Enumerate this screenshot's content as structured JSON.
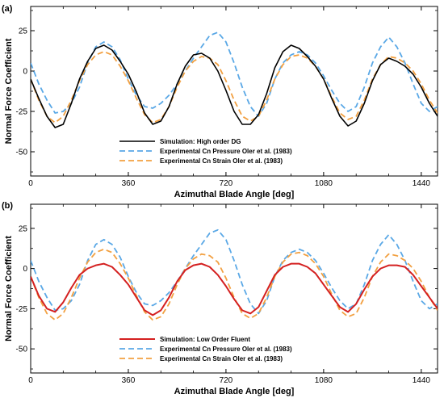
{
  "panels": [
    {
      "label": "(a)",
      "xlabel": "Azimuthal Blade Angle [deg]",
      "ylabel": "Normal Force Coefficient",
      "xlim": [
        0,
        1500
      ],
      "ylim": [
        -65,
        40
      ],
      "xticks": [
        0,
        360,
        720,
        1080,
        1440
      ],
      "yticks": [
        25,
        0,
        -25,
        -50
      ],
      "legend_position": "bottom-center",
      "legend": [
        "Simulation: High order DG",
        "Experimental Cn Pressure Oler et al. (1983)",
        "Experimental Cn Strain Oler et al. (1983)"
      ]
    },
    {
      "label": "(b)",
      "xlabel": "Azimuthal Blade Angle [deg]",
      "ylabel": "Normal Force Coefficient",
      "xlim": [
        0,
        1500
      ],
      "ylim": [
        -65,
        40
      ],
      "xticks": [
        0,
        360,
        720,
        1080,
        1440
      ],
      "yticks": [
        25,
        0,
        -25,
        -50
      ],
      "legend_position": "bottom-center",
      "legend": [
        "Simulation: Low Order Fluent",
        "Experimental Cn Pressure Oler et al. (1983)",
        "Experimental Cn Strain Oler et al. (1983)"
      ]
    }
  ],
  "colors": {
    "dg": "#000000",
    "fluent": "#d42020",
    "pressure": "#5aa8e6",
    "strain": "#f2a041"
  },
  "chart_data": [
    {
      "type": "line",
      "xlim": [
        0,
        1500
      ],
      "ylim": [
        -65,
        40
      ],
      "series": [
        {
          "name": "Simulation: High order DG",
          "x": [
            0,
            30,
            60,
            90,
            120,
            150,
            180,
            210,
            240,
            270,
            300,
            330,
            360,
            390,
            420,
            450,
            480,
            510,
            540,
            570,
            600,
            630,
            660,
            690,
            720,
            750,
            780,
            810,
            840,
            870,
            900,
            930,
            960,
            990,
            1020,
            1050,
            1080,
            1110,
            1140,
            1170,
            1200,
            1230,
            1260,
            1290,
            1320,
            1350,
            1380,
            1410,
            1440,
            1470,
            1500
          ],
          "y": [
            -5,
            -17,
            -28,
            -35,
            -33,
            -20,
            -5,
            6,
            14,
            16,
            13,
            6,
            -2,
            -13,
            -26,
            -33,
            -31,
            -22,
            -8,
            3,
            10,
            11,
            8,
            0,
            -12,
            -25,
            -33,
            -33,
            -27,
            -14,
            2,
            12,
            16,
            14,
            9,
            3,
            -5,
            -17,
            -28,
            -34,
            -31,
            -20,
            -6,
            4,
            8,
            6,
            3,
            -2,
            -10,
            -20,
            -28
          ]
        },
        {
          "name": "Experimental Cn Pressure Oler et al. (1983)",
          "x": [
            0,
            30,
            60,
            90,
            120,
            150,
            180,
            210,
            240,
            270,
            300,
            330,
            360,
            390,
            420,
            450,
            480,
            510,
            540,
            570,
            600,
            630,
            660,
            690,
            720,
            750,
            780,
            810,
            840,
            870,
            900,
            930,
            960,
            990,
            1020,
            1050,
            1080,
            1110,
            1140,
            1170,
            1200,
            1230,
            1260,
            1290,
            1320,
            1350,
            1380,
            1410,
            1440,
            1470,
            1500
          ],
          "y": [
            5,
            -8,
            -18,
            -26,
            -25,
            -20,
            -10,
            5,
            15,
            18,
            15,
            7,
            -5,
            -15,
            -22,
            -23,
            -20,
            -15,
            -8,
            0,
            8,
            15,
            22,
            24,
            18,
            5,
            -10,
            -22,
            -28,
            -20,
            -5,
            5,
            10,
            12,
            10,
            5,
            -3,
            -12,
            -20,
            -25,
            -22,
            -10,
            5,
            15,
            21,
            15,
            5,
            -8,
            -20,
            -25,
            -22
          ]
        },
        {
          "name": "Experimental Cn Strain Oler et al. (1983)",
          "x": [
            0,
            30,
            60,
            90,
            120,
            150,
            180,
            210,
            240,
            270,
            300,
            330,
            360,
            390,
            420,
            450,
            480,
            510,
            540,
            570,
            600,
            630,
            660,
            690,
            720,
            750,
            780,
            810,
            840,
            870,
            900,
            930,
            960,
            990,
            1020,
            1050,
            1080,
            1110,
            1140,
            1170,
            1200,
            1230,
            1260,
            1290,
            1320,
            1350,
            1380,
            1410,
            1440,
            1470,
            1500
          ],
          "y": [
            -5,
            -18,
            -28,
            -32,
            -28,
            -18,
            -6,
            4,
            10,
            12,
            10,
            3,
            -6,
            -17,
            -27,
            -32,
            -30,
            -22,
            -10,
            0,
            6,
            9,
            8,
            4,
            -6,
            -18,
            -28,
            -31,
            -28,
            -18,
            -5,
            4,
            9,
            10,
            8,
            3,
            -5,
            -16,
            -26,
            -30,
            -28,
            -18,
            -5,
            4,
            9,
            8,
            5,
            0,
            -8,
            -18,
            -26
          ]
        }
      ]
    },
    {
      "type": "line",
      "xlim": [
        0,
        1500
      ],
      "ylim": [
        -65,
        40
      ],
      "series": [
        {
          "name": "Simulation: Low Order Fluent",
          "x": [
            0,
            30,
            60,
            90,
            120,
            150,
            180,
            210,
            240,
            270,
            300,
            330,
            360,
            390,
            420,
            450,
            480,
            510,
            540,
            570,
            600,
            630,
            660,
            690,
            720,
            750,
            780,
            810,
            840,
            870,
            900,
            930,
            960,
            990,
            1020,
            1050,
            1080,
            1110,
            1140,
            1170,
            1200,
            1230,
            1260,
            1290,
            1320,
            1350,
            1380,
            1410,
            1440,
            1470,
            1500
          ],
          "y": [
            -5,
            -17,
            -25,
            -27,
            -21,
            -12,
            -4,
            0,
            2,
            3,
            1,
            -4,
            -10,
            -18,
            -26,
            -29,
            -26,
            -18,
            -8,
            -1,
            2,
            3,
            1,
            -4,
            -11,
            -19,
            -26,
            -28,
            -24,
            -14,
            -4,
            1,
            3,
            3,
            1,
            -3,
            -10,
            -17,
            -24,
            -27,
            -22,
            -13,
            -5,
            0,
            2,
            2,
            1,
            -4,
            -11,
            -18,
            -25
          ]
        },
        {
          "name": "Experimental Cn Pressure Oler et al. (1983)",
          "x": [
            0,
            30,
            60,
            90,
            120,
            150,
            180,
            210,
            240,
            270,
            300,
            330,
            360,
            390,
            420,
            450,
            480,
            510,
            540,
            570,
            600,
            630,
            660,
            690,
            720,
            750,
            780,
            810,
            840,
            870,
            900,
            930,
            960,
            990,
            1020,
            1050,
            1080,
            1110,
            1140,
            1170,
            1200,
            1230,
            1260,
            1290,
            1320,
            1350,
            1380,
            1410,
            1440,
            1470,
            1500
          ],
          "y": [
            5,
            -8,
            -18,
            -26,
            -25,
            -20,
            -10,
            5,
            15,
            18,
            15,
            7,
            -5,
            -15,
            -22,
            -23,
            -20,
            -15,
            -8,
            0,
            8,
            15,
            22,
            24,
            18,
            5,
            -10,
            -22,
            -28,
            -20,
            -5,
            5,
            10,
            12,
            10,
            5,
            -3,
            -12,
            -20,
            -25,
            -22,
            -10,
            5,
            15,
            21,
            15,
            5,
            -8,
            -20,
            -25,
            -22
          ]
        },
        {
          "name": "Experimental Cn Strain Oler et al. (1983)",
          "x": [
            0,
            30,
            60,
            90,
            120,
            150,
            180,
            210,
            240,
            270,
            300,
            330,
            360,
            390,
            420,
            450,
            480,
            510,
            540,
            570,
            600,
            630,
            660,
            690,
            720,
            750,
            780,
            810,
            840,
            870,
            900,
            930,
            960,
            990,
            1020,
            1050,
            1080,
            1110,
            1140,
            1170,
            1200,
            1230,
            1260,
            1290,
            1320,
            1350,
            1380,
            1410,
            1440,
            1470,
            1500
          ],
          "y": [
            -5,
            -18,
            -28,
            -32,
            -28,
            -18,
            -6,
            4,
            10,
            12,
            10,
            3,
            -6,
            -17,
            -27,
            -32,
            -30,
            -22,
            -10,
            0,
            6,
            9,
            8,
            4,
            -6,
            -18,
            -28,
            -31,
            -28,
            -18,
            -5,
            4,
            9,
            10,
            8,
            3,
            -5,
            -16,
            -26,
            -30,
            -28,
            -18,
            -5,
            4,
            9,
            8,
            5,
            0,
            -8,
            -18,
            -26
          ]
        }
      ]
    }
  ]
}
